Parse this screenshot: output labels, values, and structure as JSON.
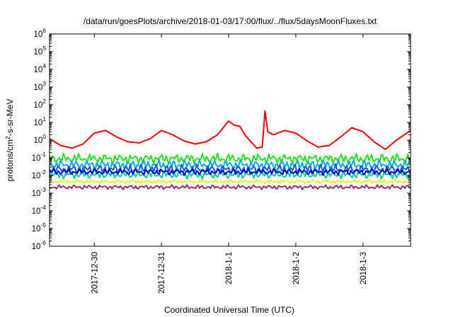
{
  "chart_data": {
    "type": "line",
    "title": "/data/run/goesPlots/archive/2018-01-03/17:00/flux/../flux/5daysMoonFluxes.txt",
    "xlabel": "Coordinated Universal Time (UTC)",
    "ylabel": {
      "base": "protons/cm",
      "sup": "2",
      "rest": "-s-sr-MeV"
    },
    "yscale": "log",
    "ylim": [
      1e-06,
      1000000
    ],
    "yticks": [
      {
        "base": "10",
        "exp": "6"
      },
      {
        "base": "10",
        "exp": "5"
      },
      {
        "base": "10",
        "exp": "4"
      },
      {
        "base": "10",
        "exp": "3"
      },
      {
        "base": "10",
        "exp": "2"
      },
      {
        "base": "10",
        "exp": "1"
      },
      {
        "base": "10",
        "exp": "0"
      },
      {
        "base": "10",
        "exp": "-1"
      },
      {
        "base": "10",
        "exp": "-2"
      },
      {
        "base": "10",
        "exp": "-3"
      },
      {
        "base": "10",
        "exp": "-4"
      },
      {
        "base": "10",
        "exp": "-5"
      },
      {
        "base": "10",
        "exp": "-6"
      }
    ],
    "xlim": [
      "2017-12-29T08:00",
      "2018-01-03T17:00"
    ],
    "xticks": [
      {
        "label": "2017-12-30",
        "value": "2017-12-30T00:00"
      },
      {
        "label": "2017-12-31",
        "value": "2017-12-31T00:00"
      },
      {
        "label": "2018-1-1",
        "value": "2018-01-01T00:00"
      },
      {
        "label": "2018-1-2",
        "value": "2018-01-02T00:00"
      },
      {
        "label": "2018-1-3",
        "value": "2018-01-03T00:00"
      }
    ],
    "grid": false,
    "legend": "none",
    "series": [
      {
        "color": "#ee0000",
        "points": [
          [
            "2017-12-29T08:00",
            1.2
          ],
          [
            "2017-12-29T12:00",
            0.5
          ],
          [
            "2017-12-29T16:00",
            0.35
          ],
          [
            "2017-12-29T20:00",
            0.6
          ],
          [
            "2017-12-30T00:00",
            2.5
          ],
          [
            "2017-12-30T04:00",
            3.5
          ],
          [
            "2017-12-30T08:00",
            1.5
          ],
          [
            "2017-12-30T12:00",
            0.8
          ],
          [
            "2017-12-30T16:00",
            0.7
          ],
          [
            "2017-12-30T20:00",
            1.2
          ],
          [
            "2017-12-31T00:00",
            3.5
          ],
          [
            "2017-12-31T04:00",
            2.0
          ],
          [
            "2017-12-31T08:00",
            0.9
          ],
          [
            "2017-12-31T12:00",
            0.6
          ],
          [
            "2017-12-31T16:00",
            0.8
          ],
          [
            "2017-12-31T20:00",
            2.0
          ],
          [
            "2018-01-01T00:00",
            12
          ],
          [
            "2018-01-01T02:00",
            7
          ],
          [
            "2018-01-01T04:00",
            6
          ],
          [
            "2018-01-01T06:00",
            1.8
          ],
          [
            "2018-01-01T08:00",
            0.8
          ],
          [
            "2018-01-01T10:00",
            0.35
          ],
          [
            "2018-01-01T12:00",
            0.4
          ],
          [
            "2018-01-01T13:00",
            45
          ],
          [
            "2018-01-01T14:00",
            3
          ],
          [
            "2018-01-01T16:00",
            2.0
          ],
          [
            "2018-01-01T20:00",
            3.5
          ],
          [
            "2018-01-02T00:00",
            2.5
          ],
          [
            "2018-01-02T04:00",
            0.9
          ],
          [
            "2018-01-02T08:00",
            0.4
          ],
          [
            "2018-01-02T12:00",
            0.5
          ],
          [
            "2018-01-02T16:00",
            1.5
          ],
          [
            "2018-01-02T20:00",
            5
          ],
          [
            "2018-01-03T00:00",
            3
          ],
          [
            "2018-01-03T04:00",
            0.8
          ],
          [
            "2018-01-03T08:00",
            0.3
          ],
          [
            "2018-01-03T12:00",
            1.0
          ],
          [
            "2018-01-03T17:00",
            3.5
          ]
        ]
      },
      {
        "color": "#22dd22",
        "base": 0.09,
        "amp": 0.55
      },
      {
        "color": "#00aadd",
        "base": 0.04,
        "amp": 0.55
      },
      {
        "color": "#1155ee",
        "base": 0.022,
        "amp": 0.55
      },
      {
        "color": "#00cc99",
        "base": 0.011,
        "amp": 0.45
      },
      {
        "color": "#0000bb",
        "base": 0.016,
        "amp": 0.35
      },
      {
        "color": "#eeee22",
        "base": 0.0045,
        "amp": 0.2
      },
      {
        "color": "#883377",
        "base": 0.0022,
        "amp": 0.25
      }
    ]
  }
}
